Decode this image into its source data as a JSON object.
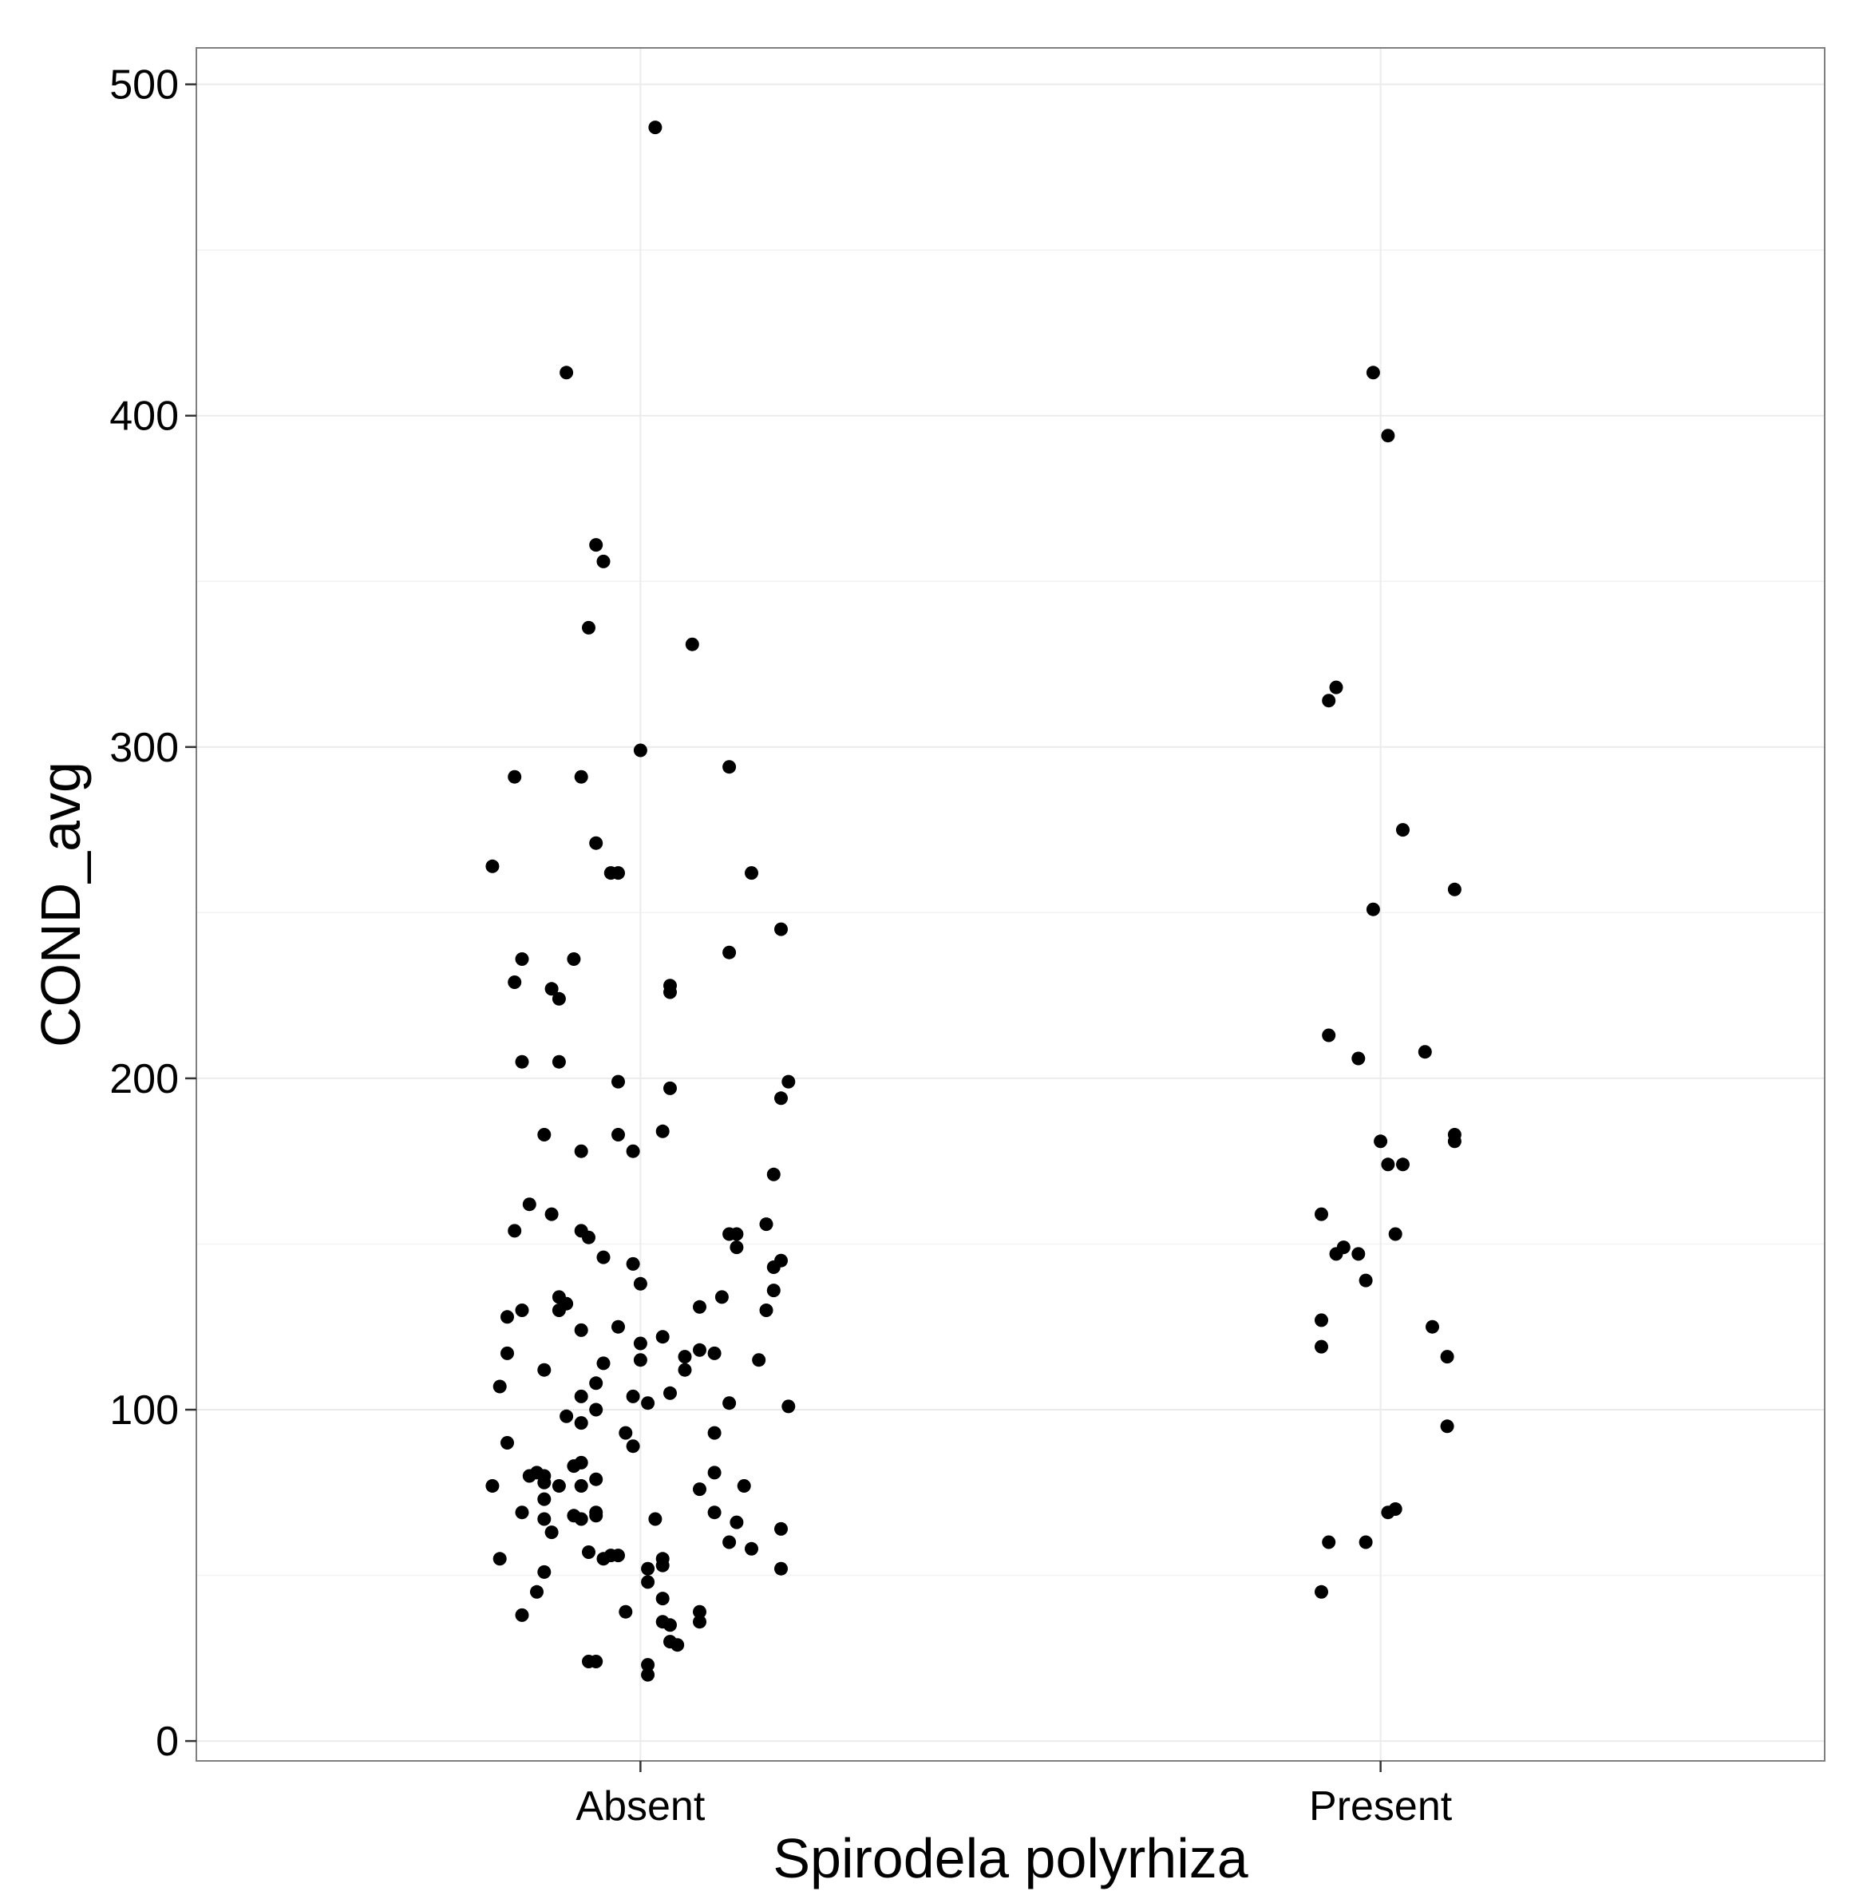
{
  "chart_data": {
    "type": "scatter",
    "xlabel": "Spirodela polyrhiza",
    "ylabel": "COND_avg",
    "categories": [
      "Absent",
      "Present"
    ],
    "ylim": [
      -6,
      511
    ],
    "yticks": [
      0,
      100,
      200,
      300,
      400,
      500
    ],
    "grid": true,
    "point_color": "#000000",
    "series": [
      {
        "category": "Absent",
        "points": [
          {
            "jitter": 0.02,
            "y": 487
          },
          {
            "jitter": -0.1,
            "y": 413
          },
          {
            "jitter": -0.06,
            "y": 361
          },
          {
            "jitter": -0.05,
            "y": 356
          },
          {
            "jitter": -0.07,
            "y": 336
          },
          {
            "jitter": 0.07,
            "y": 331
          },
          {
            "jitter": 0.0,
            "y": 299
          },
          {
            "jitter": 0.12,
            "y": 294
          },
          {
            "jitter": -0.17,
            "y": 291
          },
          {
            "jitter": -0.08,
            "y": 291
          },
          {
            "jitter": -0.06,
            "y": 271
          },
          {
            "jitter": -0.2,
            "y": 264
          },
          {
            "jitter": -0.03,
            "y": 262
          },
          {
            "jitter": -0.04,
            "y": 262
          },
          {
            "jitter": 0.15,
            "y": 262
          },
          {
            "jitter": 0.19,
            "y": 245
          },
          {
            "jitter": 0.12,
            "y": 238
          },
          {
            "jitter": -0.16,
            "y": 236
          },
          {
            "jitter": -0.09,
            "y": 236
          },
          {
            "jitter": -0.17,
            "y": 229
          },
          {
            "jitter": -0.12,
            "y": 227
          },
          {
            "jitter": 0.04,
            "y": 228
          },
          {
            "jitter": -0.11,
            "y": 224
          },
          {
            "jitter": 0.04,
            "y": 226
          },
          {
            "jitter": -0.16,
            "y": 205
          },
          {
            "jitter": -0.11,
            "y": 205
          },
          {
            "jitter": -0.03,
            "y": 199
          },
          {
            "jitter": 0.2,
            "y": 199
          },
          {
            "jitter": 0.04,
            "y": 197
          },
          {
            "jitter": 0.19,
            "y": 194
          },
          {
            "jitter": -0.13,
            "y": 183
          },
          {
            "jitter": -0.03,
            "y": 183
          },
          {
            "jitter": 0.03,
            "y": 184
          },
          {
            "jitter": -0.08,
            "y": 178
          },
          {
            "jitter": -0.01,
            "y": 178
          },
          {
            "jitter": 0.18,
            "y": 171
          },
          {
            "jitter": -0.15,
            "y": 162
          },
          {
            "jitter": -0.12,
            "y": 159
          },
          {
            "jitter": -0.17,
            "y": 154
          },
          {
            "jitter": -0.08,
            "y": 154
          },
          {
            "jitter": -0.07,
            "y": 152
          },
          {
            "jitter": 0.17,
            "y": 156
          },
          {
            "jitter": 0.12,
            "y": 153
          },
          {
            "jitter": 0.13,
            "y": 153
          },
          {
            "jitter": 0.13,
            "y": 149
          },
          {
            "jitter": -0.05,
            "y": 146
          },
          {
            "jitter": -0.01,
            "y": 144
          },
          {
            "jitter": 0.18,
            "y": 143
          },
          {
            "jitter": 0.19,
            "y": 145
          },
          {
            "jitter": 0.0,
            "y": 138
          },
          {
            "jitter": 0.18,
            "y": 136
          },
          {
            "jitter": 0.11,
            "y": 134
          },
          {
            "jitter": -0.11,
            "y": 134
          },
          {
            "jitter": -0.1,
            "y": 132
          },
          {
            "jitter": -0.11,
            "y": 130
          },
          {
            "jitter": -0.16,
            "y": 130
          },
          {
            "jitter": 0.08,
            "y": 131
          },
          {
            "jitter": -0.18,
            "y": 128
          },
          {
            "jitter": 0.17,
            "y": 130
          },
          {
            "jitter": -0.03,
            "y": 125
          },
          {
            "jitter": -0.08,
            "y": 124
          },
          {
            "jitter": 0.03,
            "y": 122
          },
          {
            "jitter": 0.0,
            "y": 120
          },
          {
            "jitter": -0.18,
            "y": 117
          },
          {
            "jitter": -0.05,
            "y": 114
          },
          {
            "jitter": 0.06,
            "y": 116
          },
          {
            "jitter": 0.08,
            "y": 118
          },
          {
            "jitter": 0.1,
            "y": 117
          },
          {
            "jitter": 0.16,
            "y": 115
          },
          {
            "jitter": 0.0,
            "y": 115
          },
          {
            "jitter": 0.06,
            "y": 112
          },
          {
            "jitter": -0.13,
            "y": 112
          },
          {
            "jitter": -0.06,
            "y": 108
          },
          {
            "jitter": -0.19,
            "y": 107
          },
          {
            "jitter": -0.08,
            "y": 104
          },
          {
            "jitter": -0.01,
            "y": 104
          },
          {
            "jitter": 0.04,
            "y": 105
          },
          {
            "jitter": 0.12,
            "y": 102
          },
          {
            "jitter": 0.01,
            "y": 102
          },
          {
            "jitter": 0.2,
            "y": 101
          },
          {
            "jitter": -0.06,
            "y": 100
          },
          {
            "jitter": -0.1,
            "y": 98
          },
          {
            "jitter": -0.08,
            "y": 96
          },
          {
            "jitter": -0.02,
            "y": 93
          },
          {
            "jitter": 0.1,
            "y": 93
          },
          {
            "jitter": -0.18,
            "y": 90
          },
          {
            "jitter": -0.01,
            "y": 89
          },
          {
            "jitter": -0.08,
            "y": 84
          },
          {
            "jitter": -0.09,
            "y": 83
          },
          {
            "jitter": 0.1,
            "y": 81
          },
          {
            "jitter": -0.15,
            "y": 80
          },
          {
            "jitter": -0.14,
            "y": 81
          },
          {
            "jitter": -0.13,
            "y": 80
          },
          {
            "jitter": -0.06,
            "y": 79
          },
          {
            "jitter": -0.13,
            "y": 78
          },
          {
            "jitter": -0.11,
            "y": 77
          },
          {
            "jitter": -0.08,
            "y": 77
          },
          {
            "jitter": 0.08,
            "y": 76
          },
          {
            "jitter": 0.14,
            "y": 77
          },
          {
            "jitter": -0.2,
            "y": 77
          },
          {
            "jitter": -0.13,
            "y": 73
          },
          {
            "jitter": -0.16,
            "y": 69
          },
          {
            "jitter": -0.06,
            "y": 69
          },
          {
            "jitter": -0.06,
            "y": 68
          },
          {
            "jitter": -0.09,
            "y": 68
          },
          {
            "jitter": -0.08,
            "y": 67
          },
          {
            "jitter": -0.13,
            "y": 67
          },
          {
            "jitter": 0.02,
            "y": 67
          },
          {
            "jitter": 0.1,
            "y": 69
          },
          {
            "jitter": 0.13,
            "y": 66
          },
          {
            "jitter": 0.19,
            "y": 64
          },
          {
            "jitter": -0.12,
            "y": 63
          },
          {
            "jitter": 0.12,
            "y": 60
          },
          {
            "jitter": 0.15,
            "y": 58
          },
          {
            "jitter": -0.07,
            "y": 57
          },
          {
            "jitter": -0.05,
            "y": 55
          },
          {
            "jitter": -0.04,
            "y": 56
          },
          {
            "jitter": -0.03,
            "y": 56
          },
          {
            "jitter": -0.19,
            "y": 55
          },
          {
            "jitter": 0.03,
            "y": 55
          },
          {
            "jitter": 0.03,
            "y": 53
          },
          {
            "jitter": 0.19,
            "y": 52
          },
          {
            "jitter": -0.13,
            "y": 51
          },
          {
            "jitter": 0.01,
            "y": 52
          },
          {
            "jitter": 0.01,
            "y": 48
          },
          {
            "jitter": -0.14,
            "y": 45
          },
          {
            "jitter": 0.03,
            "y": 43
          },
          {
            "jitter": -0.02,
            "y": 39
          },
          {
            "jitter": 0.08,
            "y": 39
          },
          {
            "jitter": -0.16,
            "y": 38
          },
          {
            "jitter": 0.03,
            "y": 36
          },
          {
            "jitter": 0.04,
            "y": 35
          },
          {
            "jitter": 0.08,
            "y": 36
          },
          {
            "jitter": 0.04,
            "y": 30
          },
          {
            "jitter": 0.05,
            "y": 29
          },
          {
            "jitter": -0.07,
            "y": 24
          },
          {
            "jitter": -0.06,
            "y": 24
          },
          {
            "jitter": 0.01,
            "y": 23
          },
          {
            "jitter": 0.01,
            "y": 20
          }
        ]
      },
      {
        "category": "Present",
        "points": [
          {
            "jitter": -0.01,
            "y": 413
          },
          {
            "jitter": 0.01,
            "y": 394
          },
          {
            "jitter": -0.06,
            "y": 318
          },
          {
            "jitter": -0.07,
            "y": 314
          },
          {
            "jitter": 0.03,
            "y": 275
          },
          {
            "jitter": 0.1,
            "y": 257
          },
          {
            "jitter": -0.01,
            "y": 251
          },
          {
            "jitter": -0.07,
            "y": 213
          },
          {
            "jitter": 0.06,
            "y": 208
          },
          {
            "jitter": -0.03,
            "y": 206
          },
          {
            "jitter": 0.1,
            "y": 183
          },
          {
            "jitter": 0.1,
            "y": 181
          },
          {
            "jitter": 0.0,
            "y": 181
          },
          {
            "jitter": 0.01,
            "y": 174
          },
          {
            "jitter": 0.03,
            "y": 174
          },
          {
            "jitter": -0.08,
            "y": 159
          },
          {
            "jitter": 0.02,
            "y": 153
          },
          {
            "jitter": -0.05,
            "y": 149
          },
          {
            "jitter": -0.06,
            "y": 147
          },
          {
            "jitter": -0.03,
            "y": 147
          },
          {
            "jitter": -0.02,
            "y": 139
          },
          {
            "jitter": -0.08,
            "y": 127
          },
          {
            "jitter": 0.07,
            "y": 125
          },
          {
            "jitter": -0.08,
            "y": 119
          },
          {
            "jitter": 0.09,
            "y": 116
          },
          {
            "jitter": 0.09,
            "y": 95
          },
          {
            "jitter": 0.02,
            "y": 70
          },
          {
            "jitter": 0.01,
            "y": 69
          },
          {
            "jitter": -0.07,
            "y": 60
          },
          {
            "jitter": -0.02,
            "y": 60
          },
          {
            "jitter": -0.08,
            "y": 45
          }
        ]
      }
    ]
  }
}
